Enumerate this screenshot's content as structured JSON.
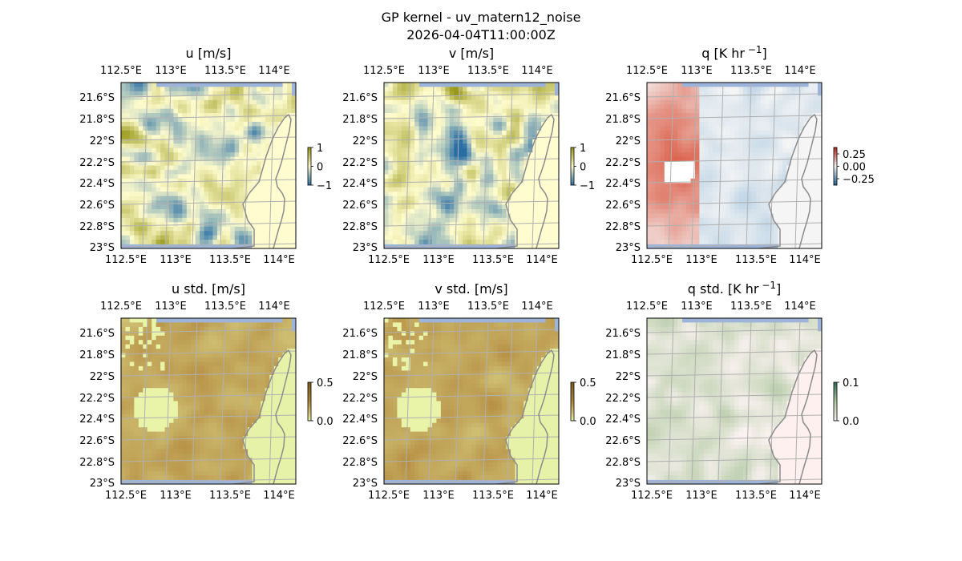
{
  "figure": {
    "title_line1": "GP kernel - uv_matern12_noise",
    "title_line2": "2026-04-04T11:00:00Z"
  },
  "chart_data": [
    {
      "type": "heatmap",
      "title": "u [m/s]",
      "x_ticks": [
        "112.5°E",
        "113°E",
        "113.5°E",
        "114°E"
      ],
      "y_ticks": [
        "21.6°S",
        "21.8°S",
        "22°S",
        "22.2°S",
        "22.4°S",
        "22.6°S",
        "22.8°S",
        "23°S"
      ],
      "xlim": [
        112.35,
        114.2
      ],
      "ylim": [
        -23.0,
        -21.47
      ],
      "colorbar": {
        "ticks": [
          "1",
          "0",
          "−1"
        ],
        "range": [
          -1,
          1
        ],
        "colormap": "diverging blue-yellow-olive"
      },
      "grid": true,
      "coastline": true
    },
    {
      "type": "heatmap",
      "title": "v [m/s]",
      "x_ticks": [
        "112.5°E",
        "113°E",
        "113.5°E",
        "114°E"
      ],
      "y_ticks": [
        "21.6°S",
        "21.8°S",
        "22°S",
        "22.2°S",
        "22.4°S",
        "22.6°S",
        "22.8°S",
        "23°S"
      ],
      "xlim": [
        112.35,
        114.2
      ],
      "ylim": [
        -23.0,
        -21.47
      ],
      "colorbar": {
        "ticks": [
          "1",
          "0",
          "−1"
        ],
        "range": [
          -1,
          1
        ],
        "colormap": "diverging blue-yellow-olive"
      },
      "grid": true,
      "coastline": true
    },
    {
      "type": "heatmap",
      "title": "q [K hr",
      "title_exp": "−1",
      "title_end": "]",
      "x_ticks": [
        "112.5°E",
        "113°E",
        "113.5°E",
        "114°E"
      ],
      "y_ticks": [
        "21.6°S",
        "21.8°S",
        "22°S",
        "22.2°S",
        "22.4°S",
        "22.6°S",
        "22.8°S",
        "23°S"
      ],
      "xlim": [
        112.35,
        114.2
      ],
      "ylim": [
        -23.0,
        -21.47
      ],
      "colorbar": {
        "ticks": [
          "0.25",
          "0.00",
          "−0.25"
        ],
        "range": [
          -0.3,
          0.3
        ],
        "colormap": "diverging blue-white-red"
      },
      "grid": true,
      "coastline": true
    },
    {
      "type": "heatmap",
      "title": "u std. [m/s]",
      "x_ticks": [
        "112.5°E",
        "113°E",
        "113.5°E",
        "114°E"
      ],
      "y_ticks": [
        "21.6°S",
        "21.8°S",
        "22°S",
        "22.2°S",
        "22.4°S",
        "22.6°S",
        "22.8°S",
        "23°S"
      ],
      "xlim": [
        112.35,
        114.2
      ],
      "ylim": [
        -23.0,
        -21.47
      ],
      "colorbar": {
        "ticks": [
          "0.5",
          "0.0"
        ],
        "range": [
          0,
          0.5
        ],
        "colormap": "sequential light-yellow to brown"
      },
      "grid": true,
      "coastline": true
    },
    {
      "type": "heatmap",
      "title": "v std. [m/s]",
      "x_ticks": [
        "112.5°E",
        "113°E",
        "113.5°E",
        "114°E"
      ],
      "y_ticks": [
        "21.6°S",
        "21.8°S",
        "22°S",
        "22.2°S",
        "22.4°S",
        "22.6°S",
        "22.8°S",
        "23°S"
      ],
      "xlim": [
        112.35,
        114.2
      ],
      "ylim": [
        -23.0,
        -21.47
      ],
      "colorbar": {
        "ticks": [
          "0.5",
          "0.0"
        ],
        "range": [
          0,
          0.5
        ],
        "colormap": "sequential light-yellow to brown"
      },
      "grid": true,
      "coastline": true
    },
    {
      "type": "heatmap",
      "title": "q std. [K hr",
      "title_exp": "−1",
      "title_end": "]",
      "x_ticks": [
        "112.5°E",
        "113°E",
        "113.5°E",
        "114°E"
      ],
      "y_ticks": [
        "21.6°S",
        "21.8°S",
        "22°S",
        "22.2°S",
        "22.4°S",
        "22.6°S",
        "22.8°S",
        "23°S"
      ],
      "xlim": [
        112.35,
        114.2
      ],
      "ylim": [
        -23.0,
        -21.47
      ],
      "colorbar": {
        "ticks": [
          "0.1",
          "0.0"
        ],
        "range": [
          0,
          0.1
        ],
        "colormap": "sequential white-pink to green"
      },
      "grid": true,
      "coastline": true
    }
  ],
  "colors": {
    "ocean": "#9db4da",
    "grid": "#b0b0b0",
    "coast": "#8c8c8c"
  }
}
